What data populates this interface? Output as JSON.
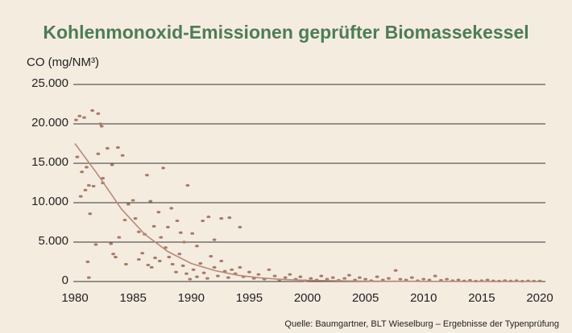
{
  "chart_data": {
    "type": "scatter",
    "title": "Kohlenmonoxid-Emissionen geprüfter Biomassekessel",
    "y_label": "CO (mg/NM³)",
    "source": "Quelle: Baumgartner, BLT Wieselburg – Ergebnisse der Typenprüfung",
    "xlim": [
      1980,
      2020
    ],
    "xticks": [
      1980,
      1985,
      1990,
      1995,
      2000,
      2005,
      2010,
      2015,
      2020
    ],
    "ylim": [
      0,
      25000
    ],
    "yticks": [
      0,
      {
        "value": 5000,
        "label": "5.000"
      },
      {
        "value": 10000,
        "label": "10.000"
      },
      {
        "value": 15000,
        "label": "15.000"
      },
      {
        "value": 20000,
        "label": "20.000"
      },
      {
        "value": 25000,
        "label": "25.000"
      }
    ],
    "grid": true,
    "series": [
      {
        "type": "scatter",
        "color": "#a87b68",
        "x": [
          1980.1,
          1980.4,
          1980.8,
          1981.5,
          1982,
          1982.2,
          1982.3,
          1980.2,
          1980.6,
          1981,
          1981.2,
          1981.6,
          1982,
          1982.4,
          1982.8,
          1983.2,
          1983.7,
          1984.1,
          1980.5,
          1980.9,
          1981.3,
          1982.4,
          1981.8,
          1981.1,
          1981.2,
          1983.1,
          1983.3,
          1983.8,
          1984.3,
          1984.6,
          1985,
          1985.2,
          1985.5,
          1986,
          1986.2,
          1986.5,
          1986.8,
          1987.2,
          1987.6,
          1987.4,
          1988,
          1988.3,
          1988.8,
          1989.1,
          1989.4,
          1989.7,
          1990.1,
          1990.5,
          1991,
          1991.5,
          1992,
          1992.6,
          1993.3,
          1994.2,
          1993.5,
          1994.2,
          1983.5,
          1984.4,
          1985.5,
          1985.8,
          1986.3,
          1986.6,
          1986.9,
          1987.3,
          1987.8,
          1988.1,
          1988.4,
          1988.7,
          1989,
          1989.3,
          1989.6,
          1989.9,
          1990.2,
          1990.5,
          1990.8,
          1991.1,
          1991.4,
          1991.7,
          1992,
          1992.3,
          1992.6,
          1992.9,
          1993.2,
          1993.8,
          1994.5,
          1995,
          1995.4,
          1995.8,
          1996.3,
          1996.7,
          1997.2,
          1997.6,
          1998.1,
          1998.5,
          1999,
          1999.4,
          1999.8,
          2000.3,
          2000.8,
          2001.2,
          2001.7,
          2002.2,
          2002.7,
          2003.2,
          2003.6,
          2004.1,
          2004.5,
          2005,
          2005.5,
          2006,
          2006.5,
          2007,
          2007.6,
          2008,
          2008.5,
          2009,
          2009.5,
          2010,
          2010.5,
          2011,
          2011.5,
          2012,
          2012.5,
          2013,
          2013.5,
          2014,
          2014.5,
          2015,
          2015.5,
          2016,
          2016.5,
          2017,
          2017.5,
          2018,
          2018.5,
          2019,
          2019.5,
          2020
        ],
        "values": [
          20500,
          21000,
          20800,
          21700,
          21300,
          20000,
          19700,
          15800,
          13900,
          14500,
          12200,
          12100,
          16200,
          13100,
          16900,
          14800,
          17000,
          16000,
          10800,
          11600,
          8600,
          12500,
          4700,
          2500,
          500,
          4800,
          3500,
          5600,
          7800,
          9800,
          10300,
          8000,
          6300,
          6000,
          13500,
          10200,
          7000,
          8800,
          14400,
          5600,
          6900,
          9300,
          7700,
          6200,
          5000,
          12200,
          6100,
          4500,
          7700,
          8200,
          5300,
          8000,
          8100,
          6900,
          1500,
          1800,
          3100,
          2200,
          2800,
          3600,
          2100,
          1800,
          3000,
          2600,
          4300,
          3100,
          2200,
          1200,
          3500,
          2000,
          1000,
          300,
          1500,
          600,
          2300,
          1100,
          400,
          3200,
          1800,
          700,
          2600,
          1300,
          500,
          1000,
          600,
          1200,
          400,
          900,
          300,
          1500,
          700,
          200,
          500,
          900,
          300,
          600,
          100,
          400,
          200,
          700,
          300,
          500,
          150,
          400,
          800,
          200,
          500,
          300,
          100,
          600,
          200,
          400,
          1400,
          300,
          200,
          500,
          100,
          300,
          200,
          700,
          150,
          300,
          100,
          200,
          80,
          150,
          50,
          100,
          200,
          80,
          50,
          120,
          60,
          100,
          40,
          80,
          50,
          60
        ]
      },
      {
        "type": "line",
        "color": "#b88a78",
        "x": [
          1980,
          1982,
          1984,
          1986,
          1988,
          1990,
          1992,
          1994,
          1996,
          1998,
          2000,
          2005,
          2010,
          2015,
          2020
        ],
        "values": [
          17500,
          13500,
          9200,
          6000,
          3800,
          2300,
          1400,
          800,
          450,
          250,
          150,
          50,
          20,
          10,
          5
        ]
      }
    ]
  }
}
